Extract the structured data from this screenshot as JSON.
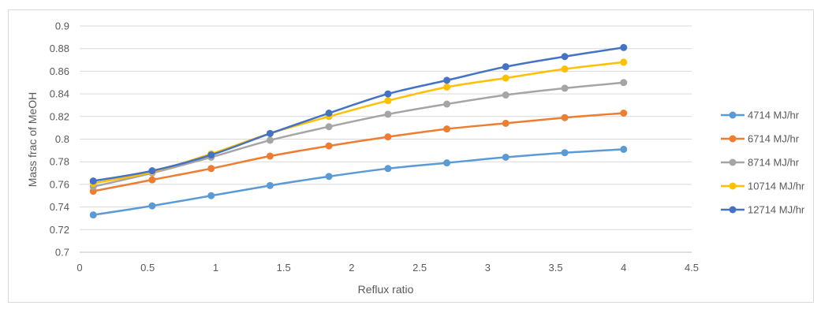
{
  "chart_data": {
    "type": "line",
    "title": "",
    "xlabel": "Reflux ratio",
    "ylabel": "Mass frac of MeOH",
    "xlim": [
      0,
      4.5
    ],
    "ylim": [
      0.7,
      0.9
    ],
    "xticks": [
      "0",
      "0.5",
      "1",
      "1.5",
      "2",
      "2.5",
      "3",
      "3.5",
      "4",
      "4.5"
    ],
    "yticks": [
      "0.7",
      "0.72",
      "0.74",
      "0.76",
      "0.78",
      "0.8",
      "0.82",
      "0.84",
      "0.86",
      "0.88",
      "0.9"
    ],
    "grid": "horizontal",
    "legend_position": "right",
    "x": [
      0.1,
      0.533,
      0.967,
      1.4,
      1.833,
      2.267,
      2.7,
      3.133,
      3.567,
      4.0
    ],
    "series": [
      {
        "name": "4714 MJ/hr",
        "color": "#5b9bd5",
        "values": [
          0.733,
          0.741,
          0.75,
          0.759,
          0.767,
          0.774,
          0.779,
          0.784,
          0.788,
          0.791
        ]
      },
      {
        "name": "6714 MJ/hr",
        "color": "#ed7d31",
        "values": [
          0.754,
          0.764,
          0.774,
          0.785,
          0.794,
          0.802,
          0.809,
          0.814,
          0.819,
          0.823
        ]
      },
      {
        "name": "8714 MJ/hr",
        "color": "#a5a5a5",
        "values": [
          0.758,
          0.77,
          0.784,
          0.799,
          0.811,
          0.822,
          0.831,
          0.839,
          0.845,
          0.85
        ]
      },
      {
        "name": "10714 MJ/hr",
        "color": "#ffc000",
        "values": [
          0.761,
          0.771,
          0.787,
          0.805,
          0.82,
          0.834,
          0.846,
          0.854,
          0.862,
          0.868
        ]
      },
      {
        "name": "12714 MJ/hr",
        "color": "#4472c4",
        "values": [
          0.763,
          0.772,
          0.786,
          0.805,
          0.823,
          0.84,
          0.852,
          0.864,
          0.873,
          0.881
        ]
      }
    ]
  }
}
